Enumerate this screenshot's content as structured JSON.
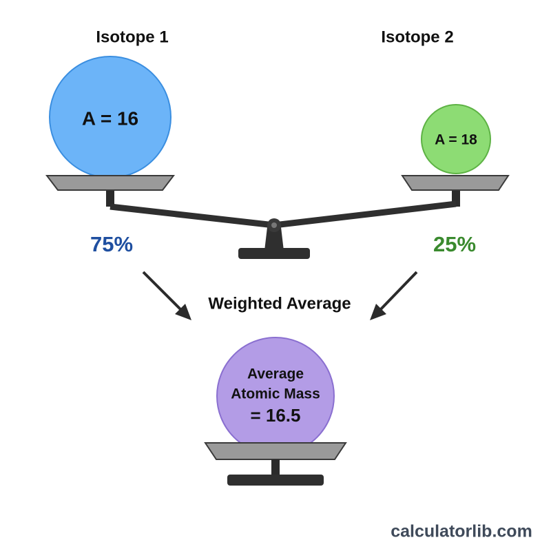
{
  "isotopes": [
    {
      "label": "Isotope 1",
      "mass": "A = 16",
      "percent": "75%"
    },
    {
      "label": "Isotope 2",
      "mass": "A = 18",
      "percent": "25%"
    }
  ],
  "arrow_label": "Weighted Average",
  "result": {
    "lines": [
      "Average",
      "Atomic Mass",
      "= 16.5"
    ]
  },
  "footer": "calculatorlib.com"
}
